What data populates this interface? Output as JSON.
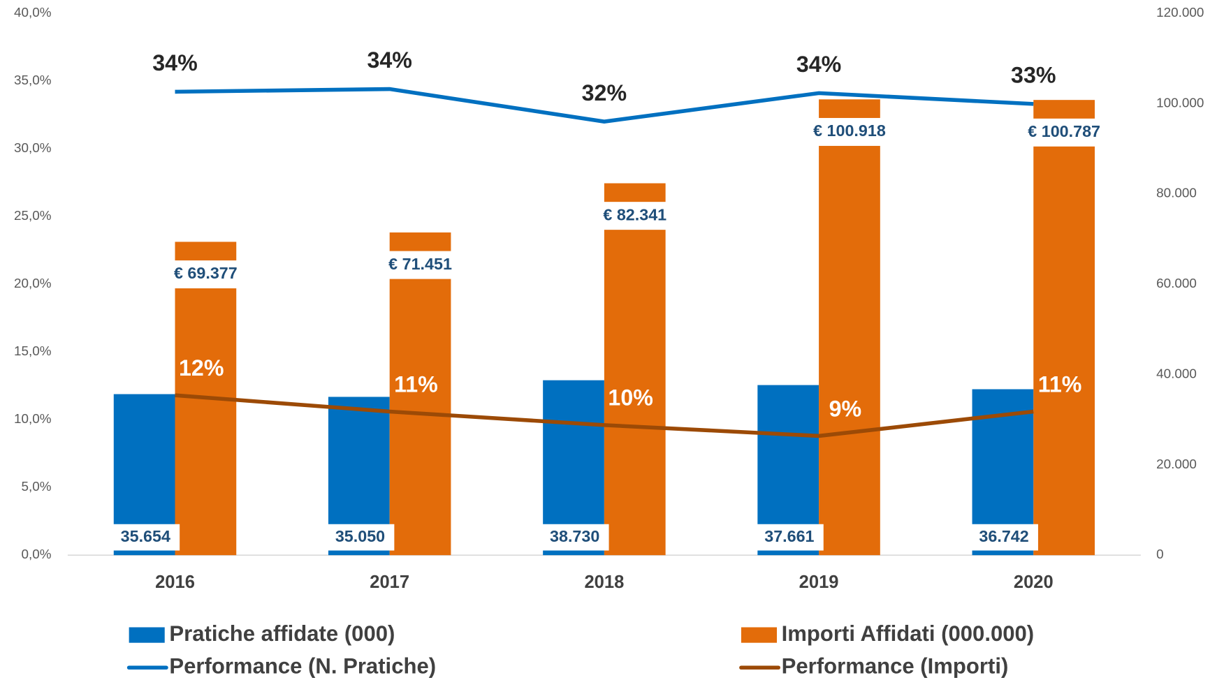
{
  "chart_data": {
    "type": "bar",
    "categories": [
      "2016",
      "2017",
      "2018",
      "2019",
      "2020"
    ],
    "series": [
      {
        "name": "Pratiche affidate (000)",
        "type": "bar",
        "axis": "y2",
        "color": "#0070c0",
        "values": [
          35654,
          35050,
          38730,
          37661,
          36742
        ],
        "value_labels": [
          "35.654",
          "35.050",
          "38.730",
          "37.661",
          "36.742"
        ]
      },
      {
        "name": "Importi Affidati (000.000)",
        "type": "bar",
        "axis": "y2",
        "color": "#e36c0a",
        "values": [
          69377,
          71451,
          82341,
          100918,
          100787
        ],
        "value_labels": [
          "€ 69.377",
          "€ 71.451",
          "€ 82.341",
          "€ 100.918",
          "€ 100.787"
        ]
      },
      {
        "name": "Performance (N. Pratiche)",
        "type": "line",
        "color": "#0070c0",
        "values": [
          34.2,
          34.4,
          32.0,
          34.1,
          33.3
        ],
        "value_labels": [
          "34%",
          "34%",
          "32%",
          "34%",
          "33%"
        ]
      },
      {
        "name": "Performance (Importi)",
        "type": "line",
        "color": "#9c4a06",
        "values": [
          11.8,
          10.6,
          9.6,
          8.8,
          10.6
        ],
        "value_labels": [
          "12%",
          "11%",
          "10%",
          "9%",
          "11%"
        ]
      }
    ],
    "ylim": [
      0,
      40
    ],
    "yticks": [
      {
        "value": 0,
        "label": "0,0%"
      },
      {
        "value": 5,
        "label": "5,0%"
      },
      {
        "value": 10,
        "label": "10,0%"
      },
      {
        "value": 15,
        "label": "15,0%"
      },
      {
        "value": 20,
        "label": "20,0%"
      },
      {
        "value": 25,
        "label": "25,0%"
      },
      {
        "value": 30,
        "label": "30,0%"
      },
      {
        "value": 35,
        "label": "35,0%"
      },
      {
        "value": 40,
        "label": "40,0%"
      }
    ],
    "y2lim": [
      0,
      120000
    ],
    "y2ticks": [
      0,
      {
        "value": 20000,
        "label": "20.000"
      },
      {
        "value": 40000,
        "label": "40.000"
      },
      {
        "value": 60000,
        "label": "60.000"
      },
      {
        "value": 80000,
        "label": "80.000"
      },
      {
        "value": 100000,
        "label": "100.000"
      },
      {
        "value": 120000,
        "label": "120.000"
      }
    ],
    "grid": false
  }
}
